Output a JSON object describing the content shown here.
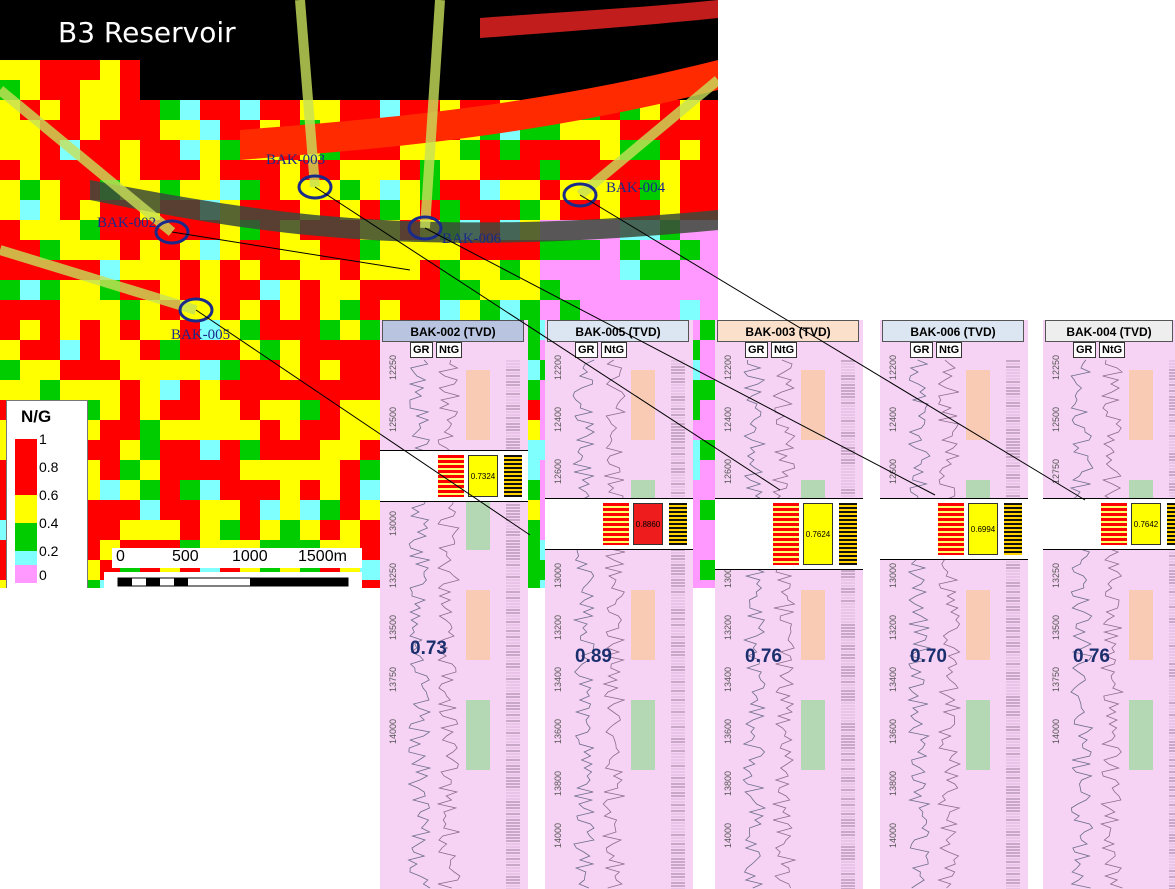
{
  "map": {
    "title": "B3 Reservoir",
    "wells": [
      {
        "name": "BAK-003"
      },
      {
        "name": "BAK-004"
      },
      {
        "name": "BAK-006"
      },
      {
        "name": "BAK-002"
      },
      {
        "name": "BAK-005"
      }
    ]
  },
  "legend": {
    "title": "N/G",
    "ticks": [
      "1",
      "0.8",
      "0.6",
      "0.4",
      "0.2",
      "0"
    ],
    "colors": [
      "#ff0000",
      "#ffff00",
      "#00cc00",
      "#80ffff",
      "#ff99ff"
    ]
  },
  "scale": {
    "labels": [
      "0",
      "500",
      "1000",
      "1500m"
    ]
  },
  "panels": [
    {
      "header": "BAK-002 (TVD)",
      "gr": "GR",
      "ntg_label": "NtG",
      "ntg_value": "0.73",
      "zone_value": "0.7324",
      "depths": [
        "12250",
        "12500",
        "12750",
        "13000",
        "13250",
        "13500",
        "13750",
        "14000"
      ]
    },
    {
      "header": "BAK-005 (TVD)",
      "gr": "GR",
      "ntg_label": "NtG",
      "ntg_value": "0.89",
      "zone_value": "0.8860",
      "depths": [
        "12200",
        "12400",
        "12600",
        "12800",
        "13000",
        "13200",
        "13400",
        "13600",
        "13800",
        "14000"
      ]
    },
    {
      "header": "BAK-003 (TVD)",
      "gr": "GR",
      "ntg_label": "NtG",
      "ntg_value": "0.76",
      "zone_value": "0.7624",
      "depths": [
        "12200",
        "12400",
        "12600",
        "12800",
        "13000",
        "13200",
        "13400",
        "13600",
        "13800",
        "14000"
      ]
    },
    {
      "header": "BAK-006 (TVD)",
      "gr": "GR",
      "ntg_label": "NtG",
      "ntg_value": "0.70",
      "zone_value": "0.6994",
      "depths": [
        "12200",
        "12400",
        "12600",
        "12800",
        "13000",
        "13200",
        "13400",
        "13600",
        "13800",
        "14000"
      ]
    },
    {
      "header": "BAK-004 (TVD)",
      "gr": "GR",
      "ntg_label": "NtG",
      "ntg_value": "0.76",
      "zone_value": "0.7642",
      "depths": [
        "12250",
        "12500",
        "12750",
        "13000",
        "13250",
        "13500",
        "13750",
        "14000"
      ]
    }
  ],
  "colors": {
    "panel_bg": "#f6d3f4",
    "head_colors": [
      "#b8c4e0",
      "#dce6f2",
      "#fbe0cc",
      "#dce6f2",
      "#eeeeee"
    ],
    "accent_navy": "#1b2f6e"
  }
}
